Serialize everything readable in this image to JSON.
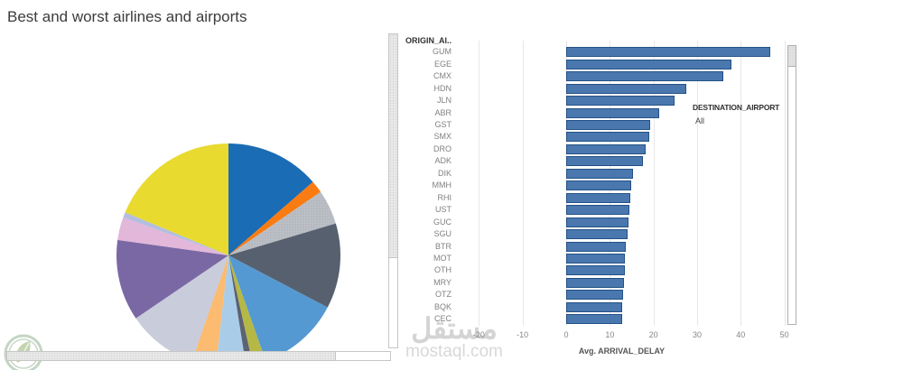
{
  "title": "Best and worst airlines and airports",
  "watermark": {
    "arabic": "مستقل",
    "domain": "mostaql.com"
  },
  "filter": {
    "label": "DESTINATION_AIRPORT",
    "value": "All"
  },
  "chart_data": [
    {
      "type": "pie",
      "segments": [
        {
          "color": "#1a6cb4",
          "percent": 13.6
        },
        {
          "color": "#f97b11",
          "percent": 1.8
        },
        {
          "color": "#bcc0c6",
          "percent": 5.0,
          "texture": "speckle"
        },
        {
          "color": "#57606e",
          "percent": 12.3
        },
        {
          "color": "#5599d2",
          "percent": 11.9
        },
        {
          "color": "#b6b845",
          "percent": 1.9
        },
        {
          "color": "#5c6372",
          "percent": 1.0
        },
        {
          "color": "#a9cde9",
          "percent": 4.3
        },
        {
          "color": "#fbbb70",
          "percent": 3.5
        },
        {
          "color": "#c8ccdb",
          "percent": 10.2
        },
        {
          "color": "#7a68a4",
          "percent": 11.7
        },
        {
          "color": "#e2b7d9",
          "percent": 3.3
        },
        {
          "color": "#b3bedf",
          "percent": 0.8
        },
        {
          "color": "#e8da2f",
          "percent": 18.7
        }
      ]
    },
    {
      "type": "bar",
      "orientation": "horizontal",
      "column_header": "ORIGIN_AI..",
      "xlabel": "Avg. ARRIVAL_DELAY",
      "bar_color": "#4a78ae",
      "bar_border": "#235186",
      "xticks": [
        -20,
        -10,
        0,
        10,
        20,
        30,
        40,
        50
      ],
      "xlim": [
        -24.6,
        50.5
      ],
      "categories": [
        "GUM",
        "EGE",
        "CMX",
        "HDN",
        "JLN",
        "ABR",
        "GST",
        "SMX",
        "DRO",
        "ADK",
        "DIK",
        "MMH",
        "RHI",
        "UST",
        "GUC",
        "SGU",
        "BTR",
        "MOT",
        "OTH",
        "MRY",
        "OTZ",
        "BQK",
        "CEC"
      ],
      "values": [
        46.8,
        37.8,
        36.0,
        27.5,
        24.8,
        21.3,
        19.2,
        19.0,
        18.1,
        17.6,
        15.3,
        14.9,
        14.6,
        14.4,
        14.2,
        14.0,
        13.6,
        13.5,
        13.4,
        13.3,
        13.0,
        12.9,
        12.8
      ]
    }
  ]
}
